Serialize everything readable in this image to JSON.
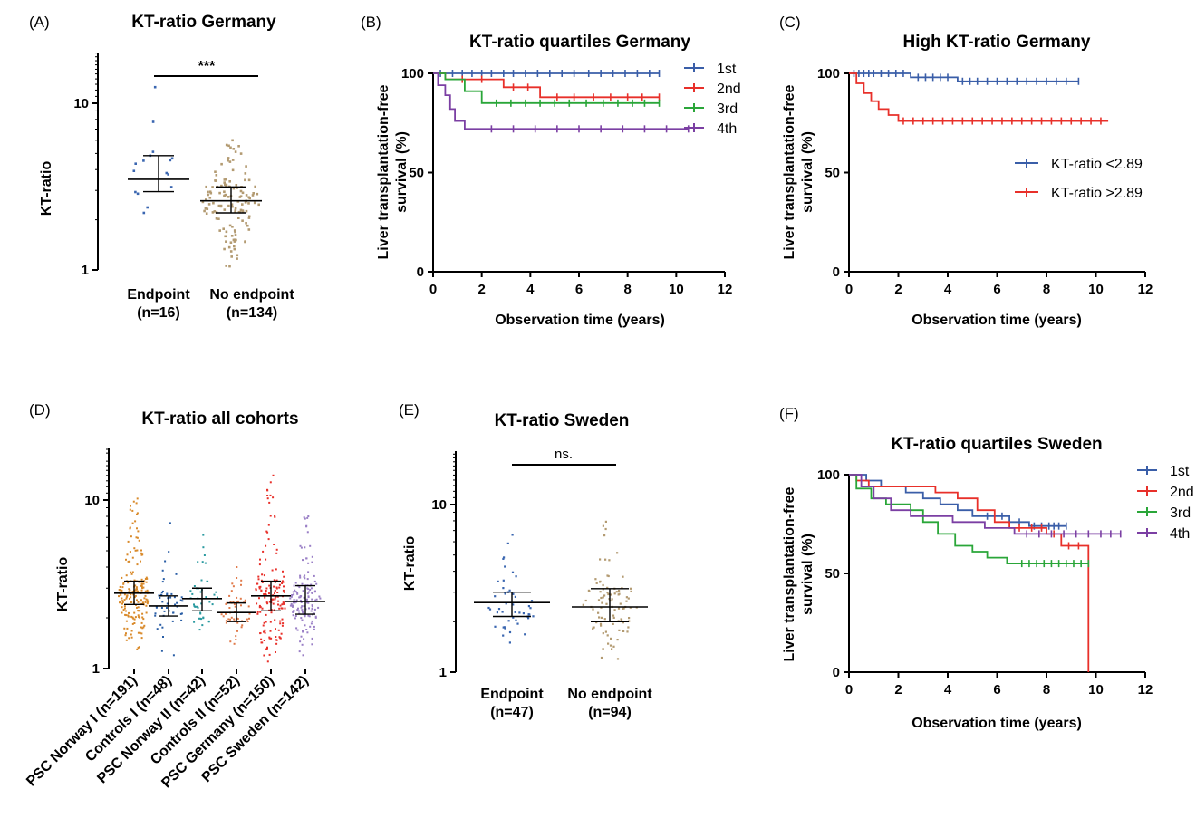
{
  "chart_data": [
    {
      "panel": "(A)",
      "type": "scatter",
      "title": "KT-ratio Germany",
      "ylabel": "KT-ratio",
      "yscale": "log",
      "ylim": [
        1,
        20
      ],
      "yticks": [
        {
          "v": 1,
          "label": "1"
        },
        {
          "v": 10,
          "label": "10"
        }
      ],
      "groups": [
        {
          "label1": "Endpoint",
          "label2": "(n=16)",
          "n": 16,
          "median": 3.5,
          "q1": 2.95,
          "q3": 4.85,
          "min": 2.2,
          "max": 12.5,
          "color": "#3a66b0"
        },
        {
          "label1": "No endpoint",
          "label2": "(n=134)",
          "n": 134,
          "median": 2.6,
          "q1": 2.2,
          "q3": 3.15,
          "min": 1.05,
          "max": 6.0,
          "color": "#b39b72"
        }
      ],
      "significance": "***"
    },
    {
      "panel": "(B)",
      "type": "line",
      "title": "KT-ratio quartiles Germany",
      "xlabel": "Observation time (years)",
      "ylabel_lines": [
        "Liver transplantation-free",
        "survival (%)"
      ],
      "xlim": [
        0,
        12
      ],
      "ylim": [
        0,
        100
      ],
      "xticks": [
        0,
        2,
        4,
        6,
        8,
        10,
        12
      ],
      "yticks": [
        0,
        50,
        100
      ],
      "series": [
        {
          "name": "1st",
          "color": "#3a5ea8",
          "steps": [
            [
              0,
              100
            ],
            [
              9.3,
              100
            ]
          ],
          "censor": [
            0.3,
            0.8,
            1.2,
            1.6,
            2.0,
            2.4,
            2.9,
            3.3,
            3.8,
            4.3,
            4.8,
            5.3,
            5.8,
            6.4,
            6.9,
            7.4,
            7.9,
            8.4,
            8.9,
            9.3
          ]
        },
        {
          "name": "2nd",
          "color": "#e8302a",
          "steps": [
            [
              0,
              100
            ],
            [
              0.5,
              100
            ],
            [
              0.5,
              97
            ],
            [
              2.9,
              97
            ],
            [
              2.9,
              93
            ],
            [
              4.4,
              93
            ],
            [
              4.4,
              88
            ],
            [
              9.3,
              88
            ]
          ],
          "censor": [
            1.2,
            2.0,
            3.3,
            3.9,
            5.1,
            5.8,
            6.6,
            7.3,
            8.0,
            8.6,
            9.3
          ]
        },
        {
          "name": "3rd",
          "color": "#2aa639",
          "steps": [
            [
              0,
              100
            ],
            [
              0.5,
              100
            ],
            [
              0.5,
              97
            ],
            [
              1.3,
              97
            ],
            [
              1.3,
              91
            ],
            [
              2.0,
              91
            ],
            [
              2.0,
              85
            ],
            [
              9.3,
              85
            ]
          ],
          "censor": [
            2.6,
            3.2,
            3.8,
            4.4,
            5.0,
            5.6,
            6.3,
            7.0,
            7.6,
            8.2,
            8.7,
            9.3
          ]
        },
        {
          "name": "4th",
          "color": "#7b3fa3",
          "steps": [
            [
              0,
              100
            ],
            [
              0.2,
              100
            ],
            [
              0.2,
              94
            ],
            [
              0.5,
              94
            ],
            [
              0.5,
              89
            ],
            [
              0.7,
              89
            ],
            [
              0.7,
              82
            ],
            [
              0.9,
              82
            ],
            [
              0.9,
              76
            ],
            [
              1.3,
              76
            ],
            [
              1.3,
              72
            ],
            [
              10.5,
              72
            ]
          ],
          "censor": [
            2.4,
            3.3,
            4.2,
            5.1,
            6.0,
            6.9,
            7.8,
            8.7,
            9.6,
            10.5
          ]
        }
      ]
    },
    {
      "panel": "(C)",
      "type": "line",
      "title": "High KT-ratio Germany",
      "xlabel": "Observation time (years)",
      "ylabel_lines": [
        "Liver transplantation-free",
        "survival (%)"
      ],
      "xlim": [
        0,
        12
      ],
      "ylim": [
        0,
        100
      ],
      "xticks": [
        0,
        2,
        4,
        6,
        8,
        10,
        12
      ],
      "yticks": [
        0,
        50,
        100
      ],
      "series": [
        {
          "name": "KT-ratio <2.89",
          "color": "#3a5ea8",
          "steps": [
            [
              0,
              100
            ],
            [
              2.5,
              100
            ],
            [
              2.5,
              98
            ],
            [
              4.4,
              98
            ],
            [
              4.4,
              96
            ],
            [
              9.3,
              96
            ]
          ],
          "censor": [
            0.2,
            0.4,
            0.6,
            0.8,
            1.0,
            1.3,
            1.6,
            1.9,
            2.2,
            2.8,
            3.1,
            3.4,
            3.7,
            4.0,
            4.6,
            4.9,
            5.2,
            5.6,
            6.0,
            6.4,
            6.8,
            7.2,
            7.6,
            8.0,
            8.4,
            8.8,
            9.3
          ]
        },
        {
          "name": "KT-ratio >2.89",
          "color": "#e8302a",
          "steps": [
            [
              0,
              100
            ],
            [
              0.3,
              100
            ],
            [
              0.3,
              95
            ],
            [
              0.6,
              95
            ],
            [
              0.6,
              90
            ],
            [
              0.9,
              90
            ],
            [
              0.9,
              86
            ],
            [
              1.2,
              86
            ],
            [
              1.2,
              82
            ],
            [
              1.6,
              82
            ],
            [
              1.6,
              79
            ],
            [
              2.0,
              79
            ],
            [
              2.0,
              76
            ],
            [
              10.5,
              76
            ]
          ],
          "censor": [
            2.2,
            2.6,
            3.0,
            3.4,
            3.8,
            4.2,
            4.6,
            5.0,
            5.4,
            5.8,
            6.2,
            6.6,
            7.0,
            7.4,
            7.8,
            8.2,
            8.6,
            9.0,
            9.4,
            9.8,
            10.2
          ]
        }
      ]
    },
    {
      "panel": "(D)",
      "type": "scatter",
      "title": "KT-ratio all cohorts",
      "ylabel": "KT-ratio",
      "yscale": "log",
      "ylim": [
        1,
        20
      ],
      "yticks": [
        {
          "v": 1,
          "label": "1"
        },
        {
          "v": 10,
          "label": "10"
        }
      ],
      "groups": [
        {
          "label1": "PSC Norway I (n=191)",
          "n": 191,
          "median": 2.8,
          "q1": 2.4,
          "q3": 3.3,
          "min": 1.3,
          "max": 10.2,
          "color": "#d98a2b"
        },
        {
          "label1": "Controls I (n=48)",
          "n": 48,
          "median": 2.35,
          "q1": 2.05,
          "q3": 2.7,
          "min": 1.2,
          "max": 7.3,
          "color": "#2a5ea6"
        },
        {
          "label1": "PSC Norway II (n=42)",
          "n": 42,
          "median": 2.6,
          "q1": 2.2,
          "q3": 3.0,
          "min": 1.7,
          "max": 6.2,
          "color": "#2a9aa0"
        },
        {
          "label1": "Controls II (n=52)",
          "n": 52,
          "median": 2.15,
          "q1": 1.9,
          "q3": 2.45,
          "min": 1.4,
          "max": 4.0,
          "color": "#e07a4a"
        },
        {
          "label1": "PSC Germany (n=150)",
          "n": 150,
          "median": 2.7,
          "q1": 2.2,
          "q3": 3.3,
          "min": 1.1,
          "max": 14.0,
          "color": "#e8302a"
        },
        {
          "label1": "PSC Sweden (n=142)",
          "n": 142,
          "median": 2.5,
          "q1": 2.1,
          "q3": 3.1,
          "min": 1.2,
          "max": 8.0,
          "color": "#9a7fc6"
        }
      ]
    },
    {
      "panel": "(E)",
      "type": "scatter",
      "title": "KT-ratio Sweden",
      "ylabel": "KT-ratio",
      "yscale": "log",
      "ylim": [
        1,
        20
      ],
      "yticks": [
        {
          "v": 1,
          "label": "1"
        },
        {
          "v": 10,
          "label": "10"
        }
      ],
      "groups": [
        {
          "label1": "Endpoint",
          "label2": "(n=47)",
          "n": 47,
          "median": 2.6,
          "q1": 2.15,
          "q3": 3.0,
          "min": 1.5,
          "max": 6.6,
          "color": "#3a66b0"
        },
        {
          "label1": "No endpoint",
          "label2": "(n=94)",
          "n": 94,
          "median": 2.45,
          "q1": 2.0,
          "q3": 3.15,
          "min": 1.2,
          "max": 7.9,
          "color": "#b39b72"
        }
      ],
      "significance": "ns."
    },
    {
      "panel": "(F)",
      "type": "line",
      "title": "KT-ratio quartiles Sweden",
      "xlabel": "Observation time (years)",
      "ylabel_lines": [
        "Liver transplantation-free",
        "survival (%)"
      ],
      "xlim": [
        0,
        12
      ],
      "ylim": [
        0,
        100
      ],
      "xticks": [
        0,
        2,
        4,
        6,
        8,
        10,
        12
      ],
      "yticks": [
        0,
        50,
        100
      ],
      "series": [
        {
          "name": "1st",
          "color": "#3a5ea8",
          "steps": [
            [
              0,
              100
            ],
            [
              0.7,
              100
            ],
            [
              0.7,
              97
            ],
            [
              1.3,
              97
            ],
            [
              1.3,
              94
            ],
            [
              2.3,
              94
            ],
            [
              2.3,
              91
            ],
            [
              3.0,
              91
            ],
            [
              3.0,
              88
            ],
            [
              3.7,
              88
            ],
            [
              3.7,
              85
            ],
            [
              4.4,
              85
            ],
            [
              4.4,
              82
            ],
            [
              5.0,
              82
            ],
            [
              5.0,
              79
            ],
            [
              6.5,
              79
            ],
            [
              6.5,
              76
            ],
            [
              7.3,
              76
            ],
            [
              7.3,
              74
            ],
            [
              8.8,
              74
            ]
          ],
          "censor": [
            5.6,
            6.2,
            6.9,
            7.5,
            7.8,
            8.1,
            8.3,
            8.5,
            8.8
          ]
        },
        {
          "name": "2nd",
          "color": "#e8302a",
          "steps": [
            [
              0,
              100
            ],
            [
              0.3,
              100
            ],
            [
              0.3,
              97
            ],
            [
              0.8,
              97
            ],
            [
              0.8,
              94
            ],
            [
              3.5,
              94
            ],
            [
              3.5,
              91
            ],
            [
              4.4,
              91
            ],
            [
              4.4,
              88
            ],
            [
              5.2,
              88
            ],
            [
              5.2,
              82
            ],
            [
              5.9,
              82
            ],
            [
              5.9,
              76
            ],
            [
              6.5,
              76
            ],
            [
              6.5,
              73
            ],
            [
              8.0,
              73
            ],
            [
              8.0,
              70
            ],
            [
              8.6,
              70
            ],
            [
              8.6,
              64
            ],
            [
              9.7,
              64
            ],
            [
              9.7,
              0
            ]
          ],
          "censor": [
            6.9,
            7.4,
            7.8,
            8.3,
            8.9,
            9.3
          ]
        },
        {
          "name": "3rd",
          "color": "#2aa639",
          "steps": [
            [
              0,
              100
            ],
            [
              0.3,
              100
            ],
            [
              0.3,
              93
            ],
            [
              0.9,
              93
            ],
            [
              0.9,
              88
            ],
            [
              1.5,
              88
            ],
            [
              1.5,
              85
            ],
            [
              2.5,
              85
            ],
            [
              2.5,
              82
            ],
            [
              3.0,
              82
            ],
            [
              3.0,
              76
            ],
            [
              3.6,
              76
            ],
            [
              3.6,
              70
            ],
            [
              4.3,
              70
            ],
            [
              4.3,
              64
            ],
            [
              5.0,
              64
            ],
            [
              5.0,
              61
            ],
            [
              5.6,
              61
            ],
            [
              5.6,
              58
            ],
            [
              6.4,
              58
            ],
            [
              6.4,
              55
            ],
            [
              9.7,
              55
            ]
          ],
          "censor": [
            7.0,
            7.3,
            7.6,
            7.9,
            8.2,
            8.5,
            8.8,
            9.1,
            9.4,
            9.7
          ]
        },
        {
          "name": "4th",
          "color": "#7b3fa3",
          "steps": [
            [
              0,
              100
            ],
            [
              0.5,
              100
            ],
            [
              0.5,
              94
            ],
            [
              1.0,
              94
            ],
            [
              1.0,
              88
            ],
            [
              1.7,
              88
            ],
            [
              1.7,
              82
            ],
            [
              2.5,
              82
            ],
            [
              2.5,
              79
            ],
            [
              4.2,
              79
            ],
            [
              4.2,
              76
            ],
            [
              5.5,
              76
            ],
            [
              5.5,
              73
            ],
            [
              6.7,
              73
            ],
            [
              6.7,
              70
            ],
            [
              11.0,
              70
            ]
          ],
          "censor": [
            7.2,
            7.7,
            8.2,
            8.7,
            9.2,
            9.7,
            10.2,
            10.6,
            11.0
          ]
        }
      ]
    }
  ]
}
